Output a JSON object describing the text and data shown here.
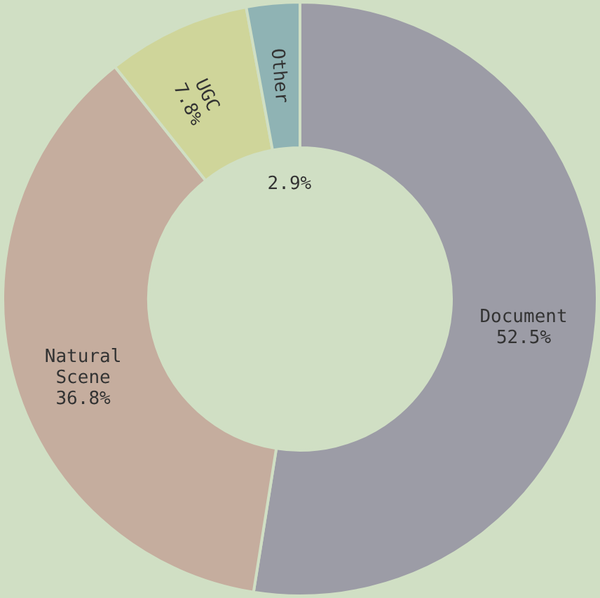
{
  "chart_data": {
    "type": "donut",
    "categories": [
      "Document",
      "Natural Scene",
      "UGC",
      "Other"
    ],
    "values": [
      52.5,
      36.8,
      7.8,
      2.9
    ],
    "colors": [
      "#9c9ca6",
      "#c5ad9e",
      "#cfd59a",
      "#8fb3b4"
    ],
    "value_labels": [
      "52.5%",
      "36.8%",
      "7.8%",
      "2.9%"
    ],
    "legend": false
  }
}
